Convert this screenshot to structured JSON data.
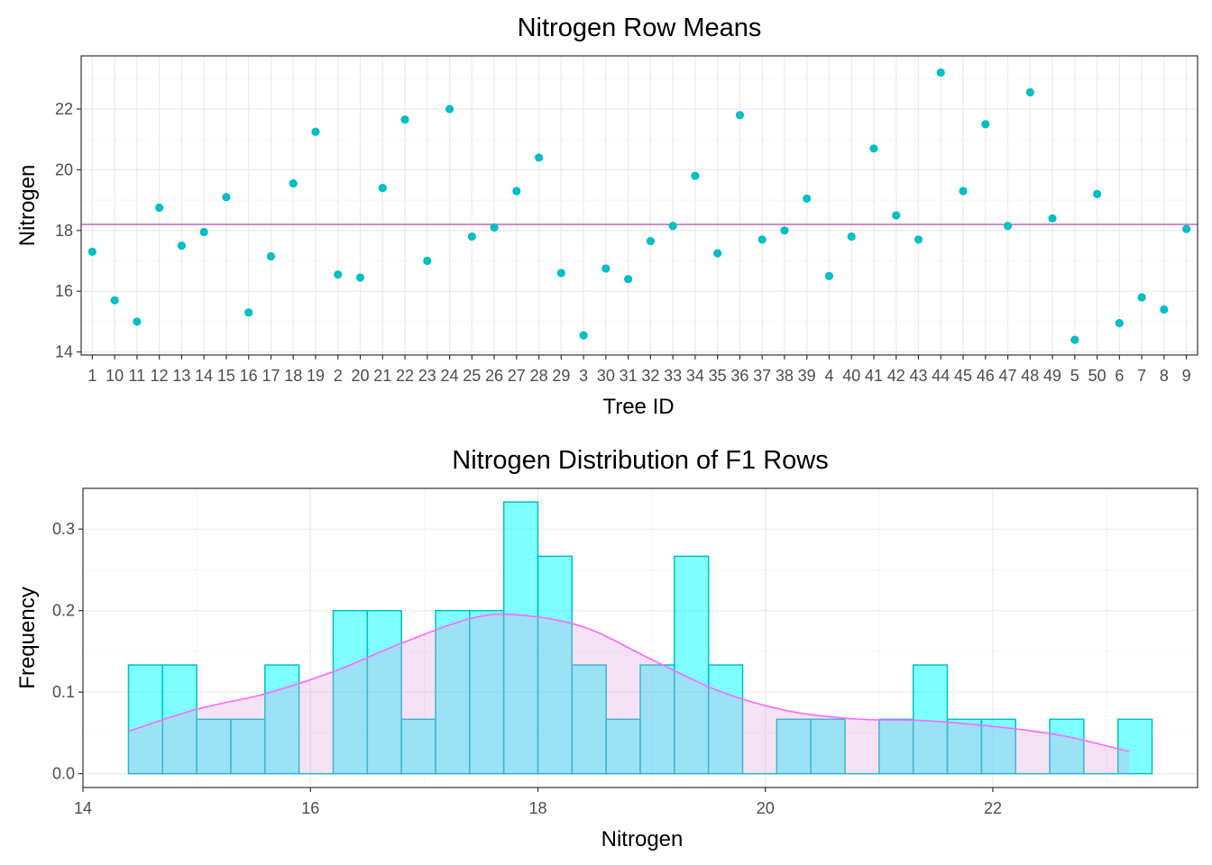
{
  "colors": {
    "point": "#00BFC4",
    "mean_line": "#CC6DCC",
    "bar_fill": "#00FFFF",
    "bar_stroke": "#00BFC4",
    "density_line": "#FF66FF",
    "density_fill": "#DDA0DD",
    "grid_major": "#EBEBEB",
    "grid_minor": "#F5F5F5",
    "panel_border": "#333333"
  },
  "chart_data": [
    {
      "type": "scatter",
      "title": "Nitrogen Row Means",
      "xlabel": "Tree ID",
      "ylabel": "Nitrogen",
      "categories": [
        "1",
        "10",
        "11",
        "12",
        "13",
        "14",
        "15",
        "16",
        "17",
        "18",
        "19",
        "2",
        "20",
        "21",
        "22",
        "23",
        "24",
        "25",
        "26",
        "27",
        "28",
        "29",
        "3",
        "30",
        "31",
        "32",
        "33",
        "34",
        "35",
        "36",
        "37",
        "38",
        "39",
        "4",
        "40",
        "41",
        "42",
        "43",
        "44",
        "45",
        "46",
        "47",
        "48",
        "49",
        "5",
        "50",
        "6",
        "7",
        "8",
        "9"
      ],
      "values": [
        17.3,
        15.7,
        15.0,
        18.75,
        17.5,
        17.95,
        19.1,
        15.3,
        17.15,
        19.55,
        21.25,
        16.55,
        16.45,
        19.4,
        21.65,
        17.0,
        22.0,
        17.8,
        18.1,
        19.3,
        20.4,
        16.6,
        14.55,
        16.75,
        16.4,
        17.65,
        18.15,
        19.8,
        17.25,
        21.8,
        17.7,
        18.0,
        19.05,
        16.5,
        17.8,
        20.7,
        18.5,
        17.7,
        23.2,
        19.3,
        21.5,
        18.15,
        22.55,
        18.4,
        14.4,
        19.2,
        14.95,
        15.8,
        15.4,
        18.05
      ],
      "mean_line": 18.2,
      "ylim": [
        13.9,
        23.75
      ],
      "yticks": [
        14,
        16,
        18,
        20,
        22
      ],
      "grid": true
    },
    {
      "type": "bar",
      "subtype": "histogram",
      "title": "Nitrogen Distribution of F1 Rows",
      "xlabel": "Nitrogen",
      "ylabel": "Frequency",
      "bin_width": 0.3,
      "bin_start": 14.4,
      "values": [
        0.1333,
        0.1333,
        0.0667,
        0.0667,
        0.1333,
        0,
        0.2,
        0.2,
        0.0667,
        0.2,
        0.2,
        0.3333,
        0.2667,
        0.1333,
        0.0667,
        0.1333,
        0.2667,
        0.1333,
        0,
        0.0667,
        0.0667,
        0,
        0.0667,
        0.1333,
        0.0667,
        0.0667,
        0,
        0.0667,
        0,
        0.0667
      ],
      "density": {
        "x": [
          14.4,
          15.0,
          15.6,
          16.2,
          16.8,
          17.4,
          17.8,
          18.4,
          19.0,
          19.6,
          20.2,
          20.8,
          21.4,
          22.0,
          22.6,
          23.2
        ],
        "y": [
          0.052,
          0.079,
          0.098,
          0.125,
          0.16,
          0.19,
          0.195,
          0.18,
          0.14,
          0.101,
          0.077,
          0.067,
          0.065,
          0.058,
          0.047,
          0.027
        ]
      },
      "xlim": [
        14.0,
        23.8
      ],
      "ylim": [
        -0.017,
        0.35
      ],
      "xticks": [
        14,
        16,
        18,
        20,
        22
      ],
      "yticks": [
        0.0,
        0.1,
        0.2,
        0.3
      ],
      "ytick_labels": [
        "0.0",
        "0.1",
        "0.2",
        "0.3"
      ],
      "grid": true
    }
  ]
}
